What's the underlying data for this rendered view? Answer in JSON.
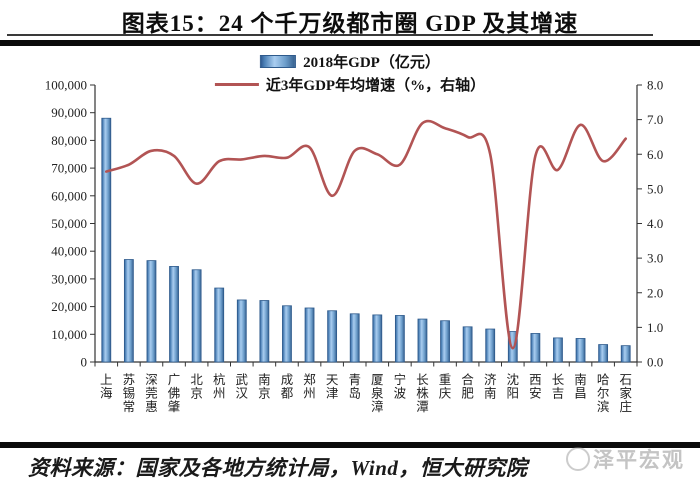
{
  "title": "图表15：24 个千万级都市圈 GDP 及其增速",
  "legend": {
    "bar_label": "2018年GDP（亿元）",
    "line_label": "近3年GDP年均增速（%，右轴）"
  },
  "footer": {
    "source": "资料来源：国家及各地方统计局，Wind，恒大研究院"
  },
  "watermark": {
    "text": "泽平宏观"
  },
  "colors": {
    "bar_edge": "#2e5a8c",
    "bar_dark": "#2f5a91",
    "bar_light": "#a9cdf0",
    "bar_mid": "#6d9ecb",
    "line": "#b25454",
    "axis": "#333333",
    "tick_label": "#222222"
  },
  "chart_data": {
    "type": "bar",
    "title": "图表15：24 个千万级都市圈 GDP 及其增速",
    "categories": [
      "上海",
      "苏锡常",
      "深莞惠",
      "广佛肇",
      "北京",
      "杭州",
      "武汉",
      "南京",
      "成都",
      "郑州",
      "天津",
      "青岛",
      "厦泉漳",
      "宁波",
      "长株潭",
      "重庆",
      "合肥",
      "济南",
      "沈阳",
      "西安",
      "长吉",
      "南昌",
      "哈尔滨",
      "石家庄"
    ],
    "series": [
      {
        "name": "2018年GDP（亿元）",
        "type": "bar",
        "axis": "left",
        "values": [
          88000,
          37000,
          36600,
          34500,
          33300,
          26700,
          22400,
          22200,
          20300,
          19500,
          18500,
          17400,
          17000,
          16800,
          15500,
          14900,
          12700,
          11900,
          11000,
          10300,
          8700,
          8500,
          6300,
          5900
        ]
      },
      {
        "name": "近3年GDP年均增速（%，右轴）",
        "type": "line",
        "axis": "right",
        "values": [
          5.5,
          5.7,
          6.1,
          5.95,
          5.15,
          5.8,
          5.85,
          5.95,
          5.9,
          6.2,
          4.8,
          6.1,
          6.0,
          5.7,
          6.9,
          6.75,
          6.5,
          6.0,
          0.4,
          5.95,
          5.55,
          6.85,
          5.8,
          6.45
        ]
      }
    ],
    "left_axis": {
      "min": 0,
      "max": 100000,
      "step": 10000,
      "ticks": [
        "0",
        "10,000",
        "20,000",
        "30,000",
        "40,000",
        "50,000",
        "60,000",
        "70,000",
        "80,000",
        "90,000",
        "100,000"
      ]
    },
    "right_axis": {
      "min": 0,
      "max": 8,
      "step": 1,
      "ticks": [
        "0.0",
        "1.0",
        "2.0",
        "3.0",
        "4.0",
        "5.0",
        "6.0",
        "7.0",
        "8.0"
      ]
    },
    "grid": false,
    "legend_position": "top-center"
  }
}
